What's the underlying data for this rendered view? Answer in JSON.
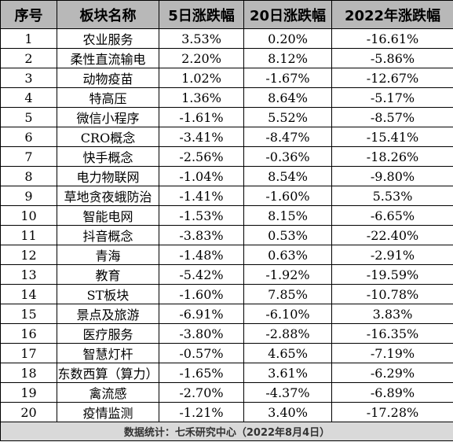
{
  "table": {
    "headers": [
      "序号",
      "板块名称",
      "5日涨跌幅",
      "20日涨跌幅",
      "2022年涨跌幅"
    ],
    "rows": [
      [
        "1",
        "农业服务",
        "3.53%",
        "0.20%",
        "-16.61%"
      ],
      [
        "2",
        "柔性直流输电",
        "2.20%",
        "8.12%",
        "-5.86%"
      ],
      [
        "3",
        "动物疫苗",
        "1.02%",
        "-1.67%",
        "-12.67%"
      ],
      [
        "4",
        "特高压",
        "1.36%",
        "8.64%",
        "-5.17%"
      ],
      [
        "5",
        "微信小程序",
        "-1.61%",
        "5.52%",
        "-8.57%"
      ],
      [
        "6",
        "CRO概念",
        "-3.41%",
        "-8.47%",
        "-15.41%"
      ],
      [
        "7",
        "快手概念",
        "-2.56%",
        "-0.36%",
        "-18.26%"
      ],
      [
        "8",
        "电力物联网",
        "-1.04%",
        "8.54%",
        "-9.80%"
      ],
      [
        "9",
        "草地贪夜蛾防治",
        "-1.41%",
        "-1.60%",
        "5.53%"
      ],
      [
        "10",
        "智能电网",
        "-1.53%",
        "8.15%",
        "-6.65%"
      ],
      [
        "11",
        "抖音概念",
        "-3.83%",
        "0.53%",
        "-22.40%"
      ],
      [
        "12",
        "青海",
        "-1.48%",
        "0.63%",
        "-2.91%"
      ],
      [
        "13",
        "教育",
        "-5.42%",
        "-1.92%",
        "-19.59%"
      ],
      [
        "14",
        "ST板块",
        "-1.60%",
        "7.85%",
        "-10.78%"
      ],
      [
        "15",
        "景点及旅游",
        "-6.91%",
        "-6.10%",
        "3.83%"
      ],
      [
        "16",
        "医疗服务",
        "-3.80%",
        "-2.88%",
        "-16.35%"
      ],
      [
        "17",
        "智慧灯杆",
        "-0.57%",
        "4.65%",
        "-7.19%"
      ],
      [
        "18",
        "东数西算（算力）",
        "-1.65%",
        "3.61%",
        "-6.29%"
      ],
      [
        "19",
        "禽流感",
        "-2.70%",
        "-4.37%",
        "-6.89%"
      ],
      [
        "20",
        "疫情监测",
        "-1.21%",
        "3.40%",
        "-17.28%"
      ]
    ],
    "footer": "数据统计：七禾研究中心（2022年8月4日）"
  }
}
